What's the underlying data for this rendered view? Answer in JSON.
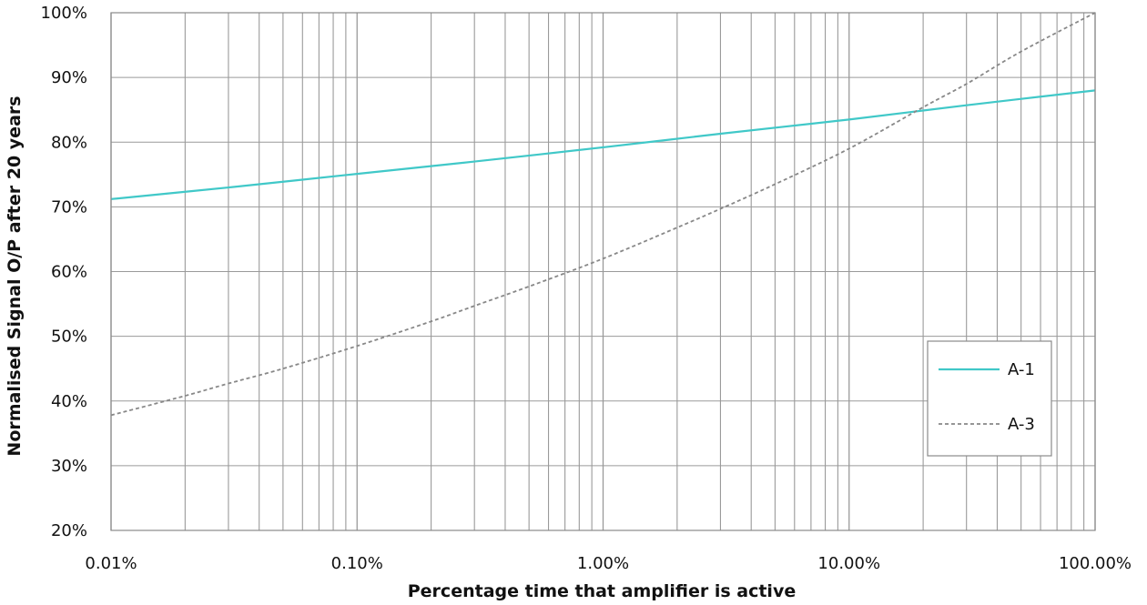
{
  "chart_data": {
    "type": "line",
    "title": "",
    "xlabel": "Percentage time that amplifier is active",
    "ylabel": "Normalised Signal O/P after 20 years",
    "x_scale": "log",
    "xlim": [
      0.01,
      100
    ],
    "ylim": [
      20,
      100
    ],
    "x_ticks": [
      0.01,
      0.1,
      1,
      10,
      100
    ],
    "x_tick_labels": [
      "0.01%",
      "0.10%",
      "1.00%",
      "10.00%",
      "100.00%"
    ],
    "y_ticks": [
      20,
      30,
      40,
      50,
      60,
      70,
      80,
      90,
      100
    ],
    "y_tick_labels": [
      "20%",
      "30%",
      "40%",
      "50%",
      "60%",
      "70%",
      "80%",
      "90%",
      "100%"
    ],
    "grid": true,
    "legend_position": "right",
    "series": [
      {
        "name": "A-1",
        "color": "#40c8c8",
        "style": "solid",
        "x": [
          0.01,
          0.03,
          0.1,
          0.3,
          1,
          3,
          10,
          30,
          100
        ],
        "y": [
          71.2,
          73.0,
          75.1,
          77.0,
          79.2,
          81.3,
          83.5,
          85.7,
          88.0
        ]
      },
      {
        "name": "A-3",
        "color": "#888888",
        "style": "dashed",
        "x": [
          0.01,
          0.02,
          0.03,
          0.05,
          0.1,
          0.2,
          0.3,
          0.5,
          1,
          2,
          3,
          5,
          10,
          20,
          30,
          50,
          100
        ],
        "y": [
          37.8,
          40.8,
          42.7,
          45.0,
          48.5,
          52.3,
          54.7,
          57.7,
          62.0,
          66.8,
          69.7,
          73.5,
          79.0,
          85.4,
          89.0,
          94.0,
          100.0
        ]
      }
    ]
  }
}
